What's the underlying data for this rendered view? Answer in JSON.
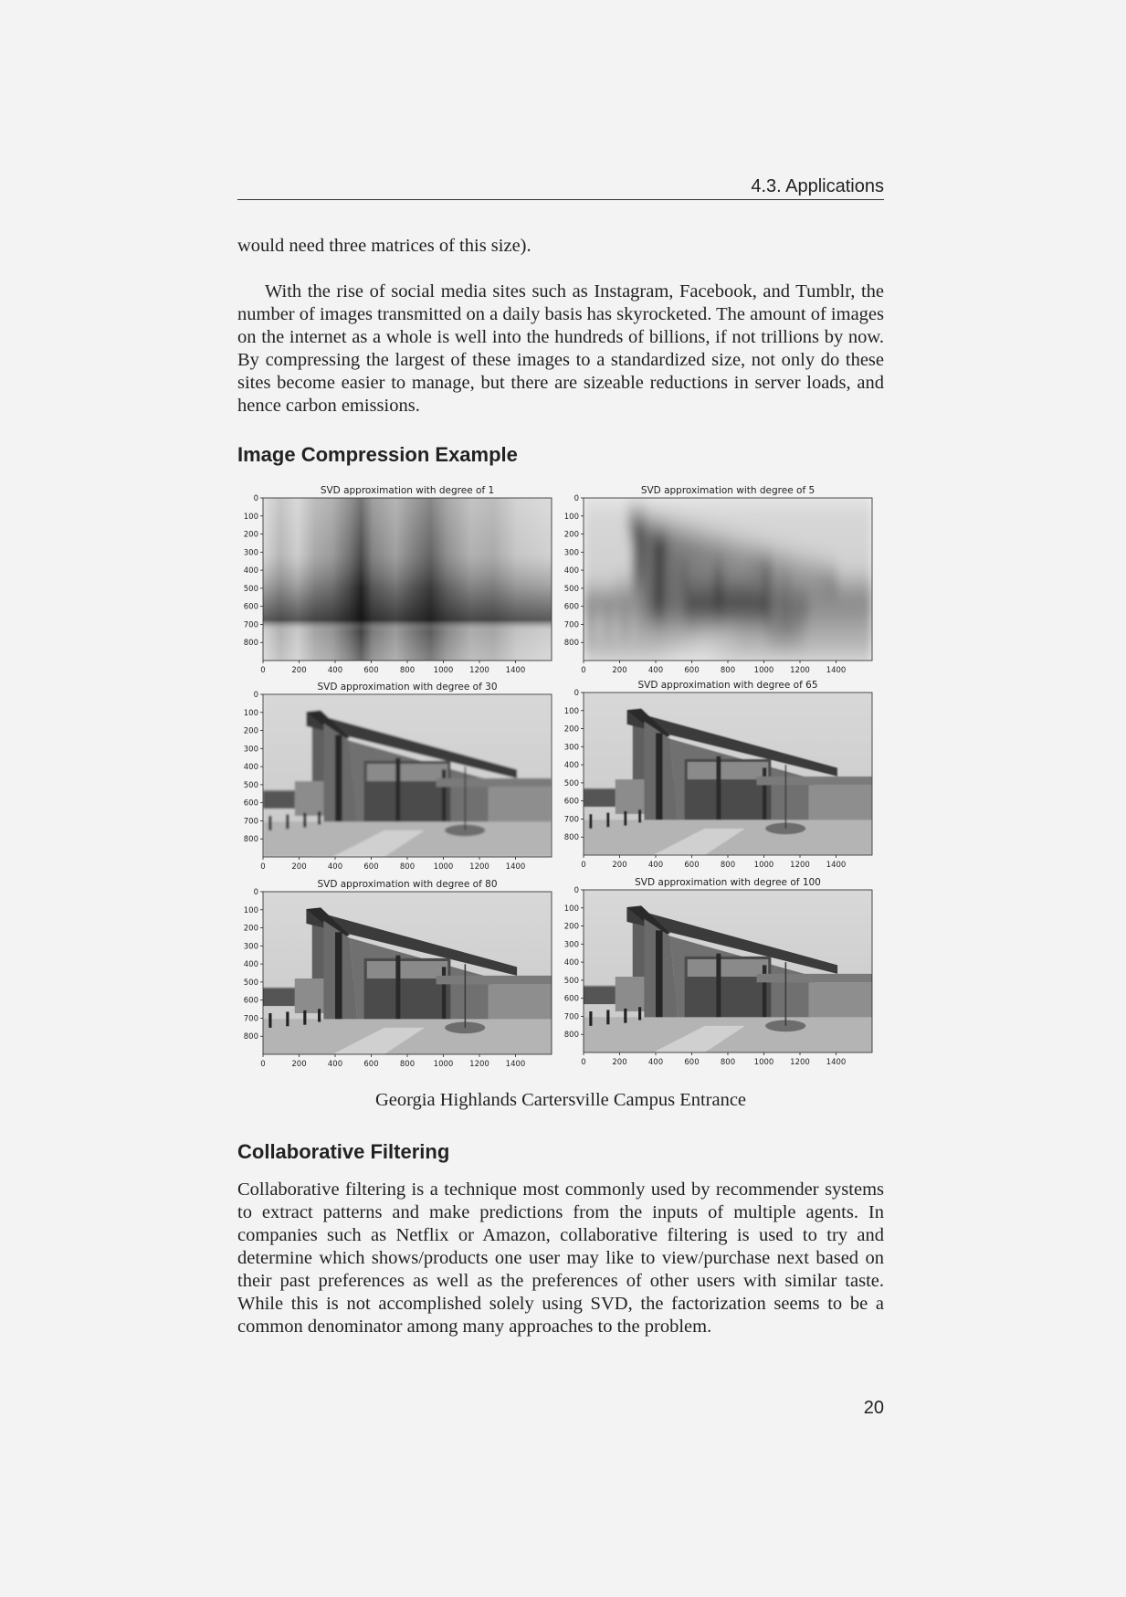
{
  "header": {
    "running_title": "4.3.  Applications"
  },
  "paragraphs": {
    "intro_tail": "would need three matrices of this size).",
    "social_media": "With the rise of social media sites such as Instagram, Facebook, and Tumblr, the number of images transmitted on a daily basis has skyrocketed. The amount of images on the internet as a whole is well into the hundreds of billions, if not trillions by now. By compressing the largest of these images to a standardized size, not only do these sites become easier to manage, but there are sizeable reductions in server loads, and hence carbon emissions.",
    "collab": "Collaborative filtering is a technique most commonly used by recommender systems to extract patterns and make predictions from the inputs of multiple agents. In companies such as Netflix or Amazon, collaborative filtering is used to try and determine which shows/products one user may like to view/purchase next based on their past preferences as well as the preferences of other users with similar taste. While this is not accomplished solely using SVD, the factorization seems to be a common denominator among many approaches to the problem."
  },
  "sections": {
    "image_compression": "Image Compression Example",
    "collaborative_filtering": "Collaborative Filtering"
  },
  "figure": {
    "caption": "Georgia Highlands Cartersville Campus Entrance",
    "panels": [
      {
        "title": "SVD approximation with degree of 1",
        "degree": 1
      },
      {
        "title": "SVD approximation with degree of 5",
        "degree": 5
      },
      {
        "title": "SVD approximation with degree of 30",
        "degree": 30
      },
      {
        "title": "SVD approximation with degree of 65",
        "degree": 65
      },
      {
        "title": "SVD approximation with degree of 80",
        "degree": 80
      },
      {
        "title": "SVD approximation with degree of 100",
        "degree": 100
      }
    ],
    "x_ticks": [
      "0",
      "200",
      "400",
      "600",
      "800",
      "1000",
      "1200",
      "1400"
    ],
    "y_ticks": [
      "0",
      "100",
      "200",
      "300",
      "400",
      "500",
      "600",
      "700",
      "800"
    ],
    "x_range": [
      0,
      1600
    ],
    "y_range": [
      0,
      900
    ]
  },
  "page_number": "20"
}
